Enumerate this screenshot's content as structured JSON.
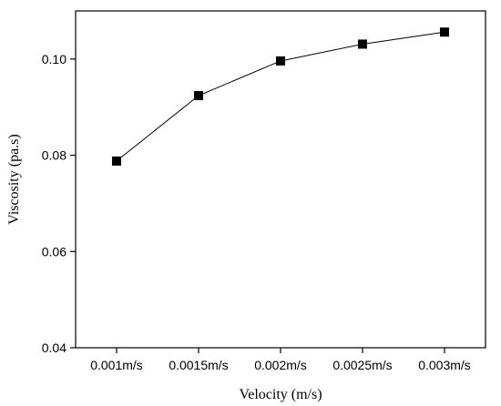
{
  "chart_data": {
    "type": "line",
    "categories": [
      "0.001m/s",
      "0.0015m/s",
      "0.002m/s",
      "0.0025m/s",
      "0.003m/s"
    ],
    "series": [
      {
        "values": [
          0.0788,
          0.0924,
          0.0996,
          0.1031,
          0.1056
        ],
        "marker": "square",
        "color": "#000000"
      }
    ],
    "xlabel": "Velocity (m/s)",
    "ylabel": "Viscosity (pa.s)",
    "ylim": [
      0.04,
      0.11
    ],
    "yticks": [
      0.04,
      0.06,
      0.08,
      0.1
    ],
    "ytick_labels": [
      "0.04",
      "0.06",
      "0.08",
      "0.10"
    ],
    "grid": false,
    "legend": "none"
  }
}
